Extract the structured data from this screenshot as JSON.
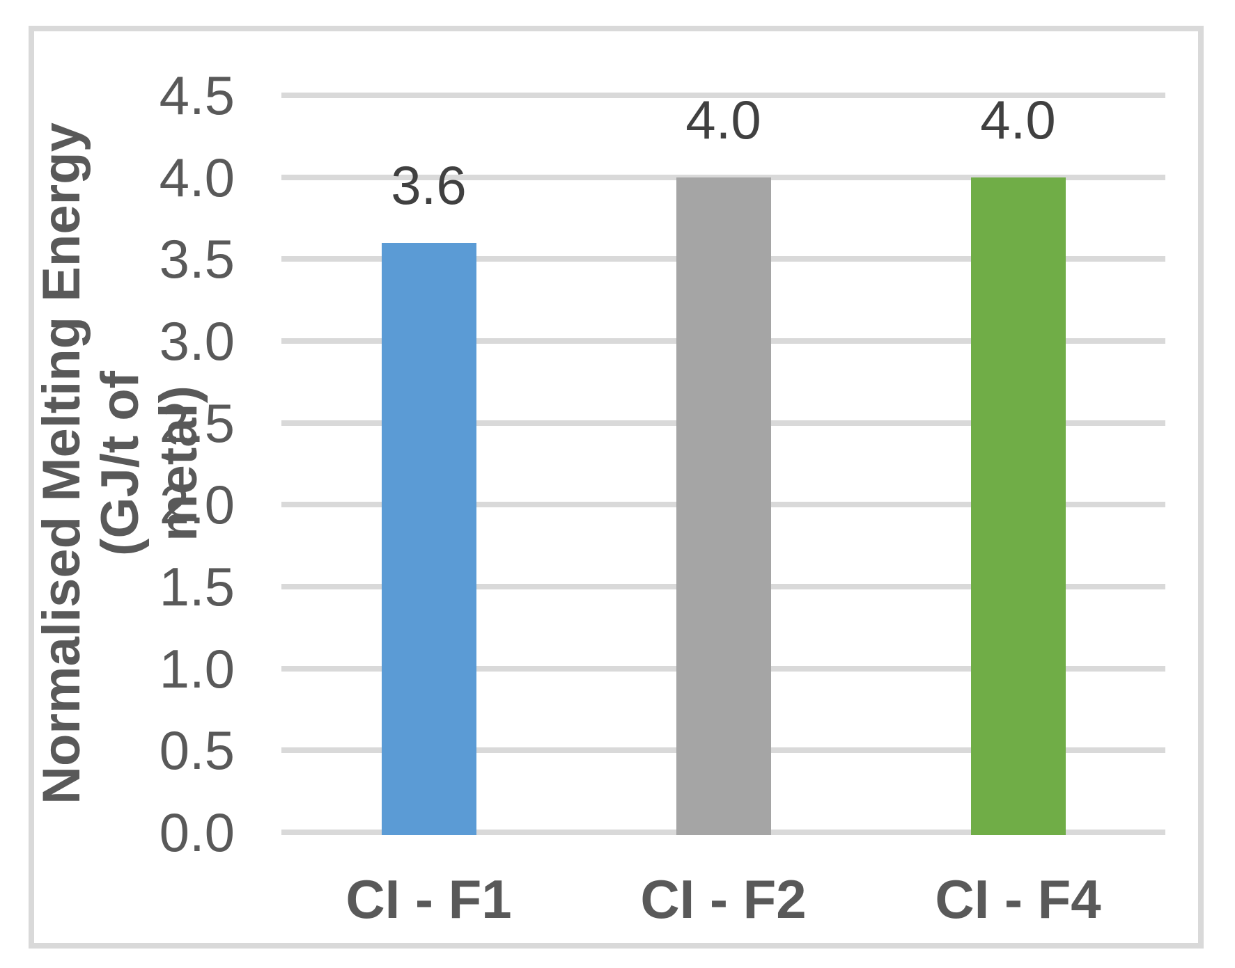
{
  "chart_data": {
    "type": "bar",
    "title": "",
    "categories": [
      "CI - F1",
      "CI - F2",
      "CI - F4"
    ],
    "values": [
      3.6,
      4.0,
      4.0
    ],
    "data_labels": [
      "3.6",
      "4.0",
      "4.0"
    ],
    "bar_colors": [
      "#5B9BD5",
      "#A5A5A5",
      "#70AD47"
    ],
    "xlabel": "",
    "ylabel": "Normalised Melting Energy (GJ/t of metal)",
    "ylabel_lines": [
      "Normalised Melting Energy (GJ/t of",
      "metal)"
    ],
    "ylim": [
      0,
      4.5
    ],
    "ytick_step": 0.5,
    "ytick_labels": [
      "0.0",
      "0.5",
      "1.0",
      "1.5",
      "2.0",
      "2.5",
      "3.0",
      "3.5",
      "4.0",
      "4.5"
    ],
    "grid": true,
    "legend": "none",
    "colors": {
      "gridline": "#D9D9D9",
      "frame_border": "#D9D9D9",
      "tick_label": "#595959",
      "data_label": "#404040",
      "category_label": "#595959",
      "axis_title": "#595959",
      "background": "#FFFFFF"
    }
  }
}
